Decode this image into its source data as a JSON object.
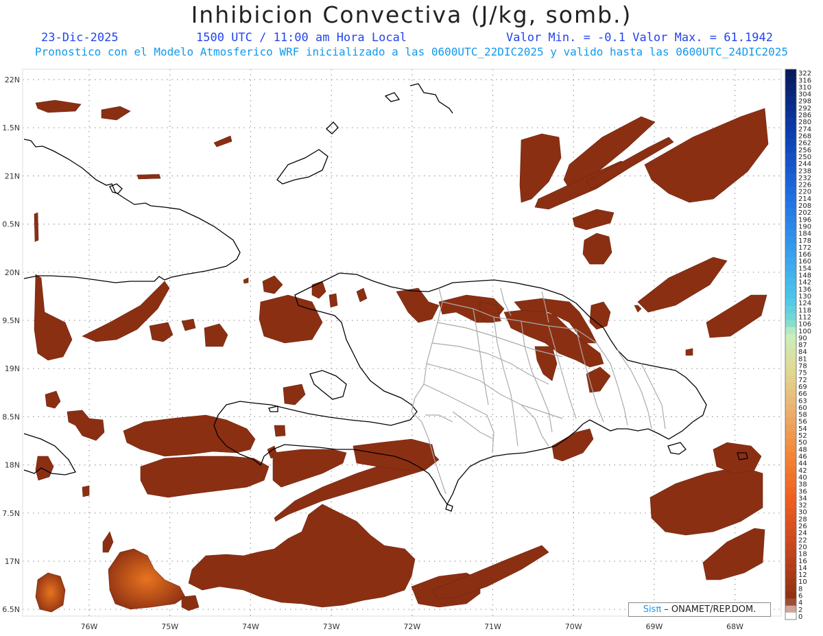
{
  "header": {
    "title": "Inhibicion Convectiva (J/kg, somb.)",
    "date": "23-Dic-2025",
    "time": "1500 UTC / 11:00 am Hora Local",
    "value_range": "Valor Min. = -0.1  Valor Max. = 61.1942",
    "forecast": "Pronostico con el Modelo Atmosferico WRF inicializado a las 0600UTC_22DIC2025 y valido hasta las  0600UTC_24DIC2025"
  },
  "axes": {
    "lat_labels": [
      "22N",
      "1.5N",
      "21N",
      "0.5N",
      "20N",
      "9.5N",
      "19N",
      "8.5N",
      "18N",
      "7.5N",
      "17N",
      "6.5N"
    ],
    "lon_labels": [
      "76W",
      "75W",
      "74W",
      "73W",
      "72W",
      "71W",
      "70W",
      "69W",
      "68W"
    ]
  },
  "colorbar": {
    "labels": [
      "322",
      "316",
      "310",
      "304",
      "298",
      "292",
      "286",
      "280",
      "274",
      "268",
      "262",
      "256",
      "250",
      "244",
      "238",
      "232",
      "226",
      "220",
      "214",
      "208",
      "202",
      "196",
      "190",
      "184",
      "178",
      "172",
      "166",
      "160",
      "154",
      "148",
      "142",
      "136",
      "130",
      "124",
      "118",
      "112",
      "106",
      "100",
      "90",
      "87",
      "84",
      "81",
      "78",
      "75",
      "72",
      "69",
      "66",
      "63",
      "60",
      "58",
      "56",
      "54",
      "52",
      "50",
      "48",
      "46",
      "44",
      "42",
      "40",
      "38",
      "36",
      "34",
      "32",
      "30",
      "28",
      "26",
      "24",
      "22",
      "20",
      "18",
      "16",
      "14",
      "12",
      "10",
      "8",
      "6",
      "4",
      "2",
      "0"
    ]
  },
  "credit": {
    "brand": "Sisπ",
    "text": " – ONAMET/REP.DOM."
  },
  "colors": {
    "field_dark": "#8a2e12",
    "field_mid": "#b8461c",
    "field_light": "#e06a1e",
    "coast": "#000000",
    "province": "#aaaaaa"
  }
}
